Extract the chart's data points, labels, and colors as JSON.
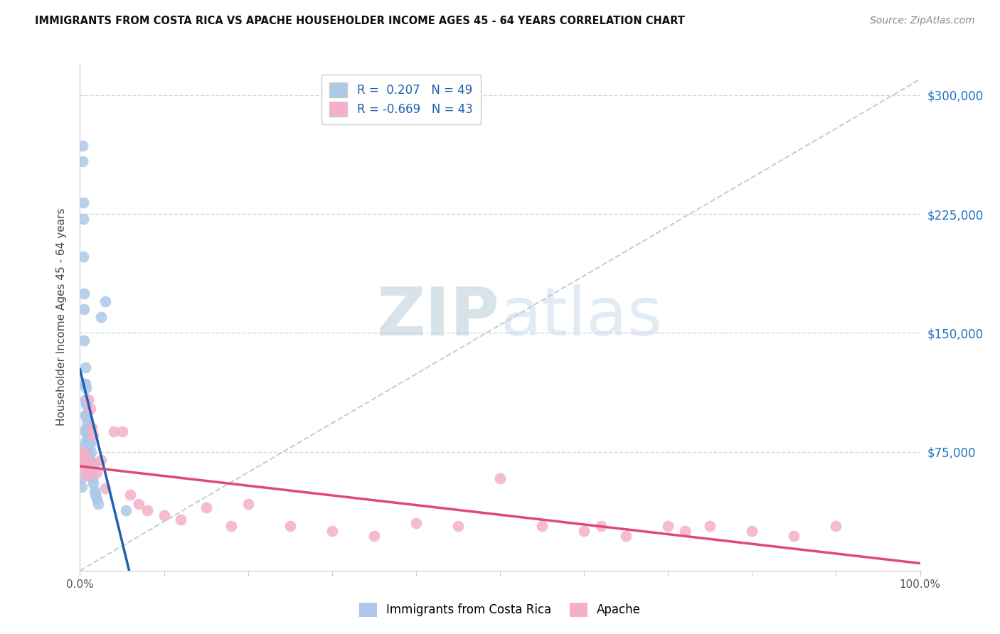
{
  "title": "IMMIGRANTS FROM COSTA RICA VS APACHE HOUSEHOLDER INCOME AGES 45 - 64 YEARS CORRELATION CHART",
  "source": "Source: ZipAtlas.com",
  "ylabel": "Householder Income Ages 45 - 64 years",
  "xlim": [
    0,
    1.0
  ],
  "ylim": [
    0,
    320000
  ],
  "ytick_positions": [
    75000,
    150000,
    225000,
    300000
  ],
  "ytick_labels": [
    "$75,000",
    "$150,000",
    "$225,000",
    "$300,000"
  ],
  "blue_R": 0.207,
  "blue_N": 49,
  "pink_R": -0.669,
  "pink_N": 43,
  "blue_color": "#adc8e8",
  "blue_edge_color": "#adc8e8",
  "blue_line_color": "#2060b0",
  "pink_color": "#f4b0c8",
  "pink_edge_color": "#f4b0c8",
  "pink_line_color": "#e04878",
  "dash_line_color": "#b0c4d8",
  "background_color": "#ffffff",
  "grid_color": "#d0d8e8",
  "watermark_color": "#d0dff0",
  "blue_scatter_x": [
    0.001,
    0.002,
    0.002,
    0.003,
    0.003,
    0.004,
    0.004,
    0.004,
    0.005,
    0.005,
    0.005,
    0.005,
    0.006,
    0.006,
    0.006,
    0.006,
    0.006,
    0.007,
    0.007,
    0.007,
    0.007,
    0.007,
    0.008,
    0.008,
    0.008,
    0.008,
    0.009,
    0.009,
    0.009,
    0.01,
    0.01,
    0.01,
    0.011,
    0.011,
    0.012,
    0.012,
    0.013,
    0.013,
    0.014,
    0.015,
    0.015,
    0.016,
    0.017,
    0.018,
    0.02,
    0.022,
    0.025,
    0.03,
    0.055
  ],
  "blue_scatter_y": [
    58000,
    78000,
    53000,
    268000,
    258000,
    232000,
    222000,
    198000,
    165000,
    145000,
    175000,
    118000,
    128000,
    118000,
    108000,
    98000,
    88000,
    115000,
    105000,
    98000,
    90000,
    82000,
    105000,
    95000,
    88000,
    75000,
    92000,
    85000,
    75000,
    90000,
    82000,
    70000,
    82000,
    72000,
    80000,
    68000,
    75000,
    62000,
    68000,
    68000,
    58000,
    55000,
    50000,
    48000,
    45000,
    42000,
    160000,
    170000,
    38000
  ],
  "pink_scatter_x": [
    0.001,
    0.002,
    0.003,
    0.004,
    0.005,
    0.006,
    0.007,
    0.008,
    0.009,
    0.01,
    0.012,
    0.014,
    0.016,
    0.018,
    0.02,
    0.025,
    0.03,
    0.04,
    0.05,
    0.06,
    0.07,
    0.08,
    0.1,
    0.12,
    0.15,
    0.18,
    0.2,
    0.25,
    0.3,
    0.35,
    0.4,
    0.45,
    0.5,
    0.55,
    0.6,
    0.62,
    0.65,
    0.7,
    0.72,
    0.75,
    0.8,
    0.85,
    0.9
  ],
  "pink_scatter_y": [
    72000,
    68000,
    75000,
    70000,
    65000,
    72000,
    68000,
    62000,
    60000,
    108000,
    102000,
    90000,
    85000,
    68000,
    62000,
    70000,
    52000,
    88000,
    88000,
    48000,
    42000,
    38000,
    35000,
    32000,
    40000,
    28000,
    42000,
    28000,
    25000,
    22000,
    30000,
    28000,
    58000,
    28000,
    25000,
    28000,
    22000,
    28000,
    25000,
    28000,
    25000,
    22000,
    28000
  ]
}
